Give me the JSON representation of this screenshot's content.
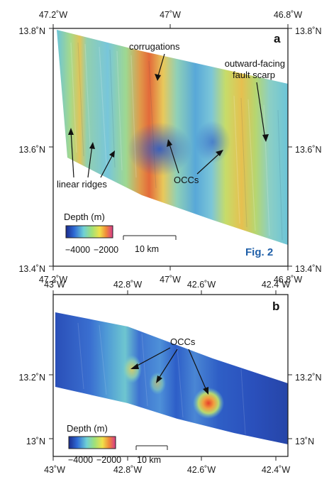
{
  "panel_a": {
    "letter": "a",
    "lon_labels": [
      "47.2˚W",
      "47˚W",
      "46.8˚W"
    ],
    "lat_labels": [
      "13.8˚N",
      "13.6˚N",
      "13.4˚N"
    ],
    "annotations": {
      "corrugations": "corrugations",
      "fault_line1": "outward-facing",
      "fault_line2": "fault scarp",
      "occcs": "OCCs",
      "ridges": "linear ridges"
    },
    "legend": {
      "title": "Depth (m)",
      "min": "−4000",
      "max": "−2000"
    },
    "scale": "10 km"
  },
  "panel_b": {
    "letter": "b",
    "lon_labels": [
      "43˚W",
      "42.8˚W",
      "42.6˚W",
      "42.4˚W"
    ],
    "lat_labels": [
      "13.2˚N",
      "13˚N"
    ],
    "annotations": {
      "occcs": "OCCs"
    },
    "legend": {
      "title": "Depth (m)",
      "min": "−4000",
      "max": "−2000"
    },
    "scale": "10 km"
  },
  "figure_label": "Fig. 2",
  "colors": {
    "accent": "#1f5fa8",
    "deep": "#1e3fa0",
    "mid": "#6fc8c8",
    "shallow": "#d63a2a"
  }
}
